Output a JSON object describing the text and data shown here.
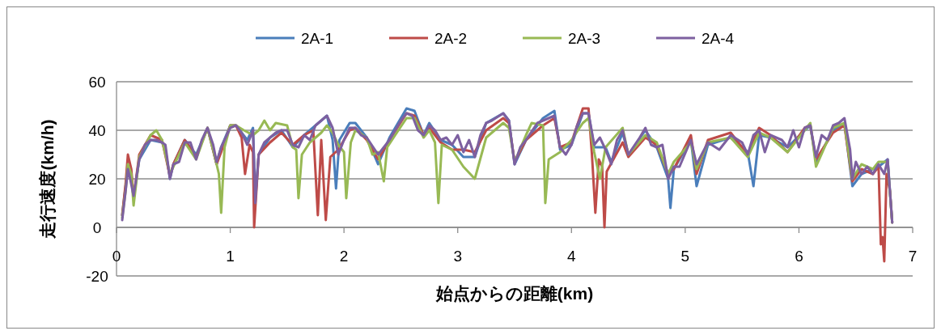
{
  "chart_data": {
    "type": "line",
    "xlabel": "始点からの距離(km)",
    "ylabel": "走行速度(km/h)",
    "xlim": [
      0,
      7
    ],
    "xticks": [
      0,
      1,
      2,
      3,
      4,
      5,
      6,
      7
    ],
    "ylim": [
      -20,
      60
    ],
    "yticks": [
      -20,
      0,
      20,
      40,
      60
    ],
    "grid": "y",
    "legend": "top",
    "marker": "none",
    "line_style": "solid",
    "series": [
      {
        "name": "2A-1",
        "color": "#4a7ebb",
        "x": [
          0.05,
          0.08,
          0.1,
          0.13,
          0.15,
          0.2,
          0.3,
          0.4,
          0.43,
          0.47,
          0.5,
          0.6,
          0.7,
          0.8,
          0.88,
          0.92,
          1.0,
          1.05,
          1.15,
          1.2,
          1.22,
          1.25,
          1.35,
          1.45,
          1.55,
          1.65,
          1.75,
          1.85,
          1.9,
          1.93,
          1.96,
          2.05,
          2.1,
          2.2,
          2.3,
          2.4,
          2.55,
          2.62,
          2.7,
          2.75,
          2.85,
          2.95,
          3.05,
          3.15,
          3.25,
          3.4,
          3.45,
          3.5,
          3.6,
          3.75,
          3.85,
          3.9,
          4.0,
          4.1,
          4.15,
          4.2,
          4.3,
          4.35,
          4.45,
          4.5,
          4.65,
          4.75,
          4.85,
          4.87,
          4.9,
          5.05,
          5.1,
          5.2,
          5.4,
          5.55,
          5.6,
          5.65,
          5.75,
          5.9,
          6.05,
          6.1,
          6.15,
          6.3,
          6.4,
          6.47,
          6.55,
          6.7,
          6.78,
          6.82
        ],
        "values": [
          5,
          17,
          24,
          22,
          12,
          28,
          36,
          35,
          32,
          20,
          26,
          36,
          30,
          41,
          26,
          33,
          42,
          42,
          36,
          41,
          12,
          30,
          37,
          40,
          33,
          38,
          42,
          46,
          36,
          16,
          36,
          43,
          43,
          37,
          26,
          37,
          49,
          48,
          38,
          43,
          36,
          34,
          29,
          29,
          43,
          47,
          44,
          26,
          36,
          45,
          48,
          32,
          34,
          47,
          47,
          33,
          33,
          27,
          39,
          30,
          40,
          33,
          20,
          8,
          24,
          36,
          17,
          34,
          37,
          31,
          17,
          38,
          37,
          33,
          40,
          42,
          27,
          40,
          43,
          17,
          22,
          25,
          28,
          2
        ]
      },
      {
        "name": "2A-2",
        "color": "#be4b48",
        "x": [
          0.05,
          0.08,
          0.1,
          0.13,
          0.15,
          0.2,
          0.3,
          0.4,
          0.47,
          0.5,
          0.6,
          0.7,
          0.8,
          0.88,
          0.92,
          1.0,
          1.05,
          1.1,
          1.13,
          1.17,
          1.2,
          1.21,
          1.25,
          1.35,
          1.45,
          1.55,
          1.65,
          1.73,
          1.77,
          1.8,
          1.84,
          1.88,
          1.95,
          2.05,
          2.1,
          2.2,
          2.3,
          2.4,
          2.55,
          2.62,
          2.7,
          2.75,
          2.85,
          2.95,
          3.05,
          3.15,
          3.25,
          3.4,
          3.45,
          3.5,
          3.6,
          3.75,
          3.85,
          3.9,
          4.0,
          4.1,
          4.15,
          4.18,
          4.21,
          4.24,
          4.27,
          4.29,
          4.31,
          4.45,
          4.5,
          4.65,
          4.75,
          4.85,
          4.9,
          5.05,
          5.1,
          5.2,
          5.4,
          5.55,
          5.6,
          5.65,
          5.75,
          5.9,
          6.05,
          6.1,
          6.15,
          6.3,
          6.4,
          6.47,
          6.55,
          6.65,
          6.7,
          6.72,
          6.735,
          6.75,
          6.77,
          6.8,
          6.82
        ],
        "values": [
          5,
          18,
          30,
          24,
          12,
          30,
          38,
          36,
          21,
          26,
          36,
          29,
          41,
          26,
          31,
          42,
          42,
          37,
          22,
          34,
          31,
          0,
          30,
          35,
          39,
          34,
          38,
          40,
          5,
          36,
          3,
          29,
          32,
          40,
          41,
          36,
          28,
          36,
          47,
          46,
          38,
          41,
          35,
          32,
          32,
          31,
          40,
          45,
          43,
          27,
          36,
          42,
          45,
          33,
          35,
          49,
          49,
          30,
          6,
          28,
          25,
          0,
          23,
          35,
          29,
          37,
          34,
          22,
          24,
          38,
          22,
          36,
          39,
          30,
          36,
          41,
          38,
          31,
          41,
          42,
          28,
          39,
          42,
          19,
          24,
          22,
          25,
          -7,
          -4,
          -14,
          22,
          15,
          2
        ]
      },
      {
        "name": "2A-3",
        "color": "#98b954",
        "x": [
          0.05,
          0.08,
          0.1,
          0.13,
          0.15,
          0.2,
          0.3,
          0.35,
          0.4,
          0.47,
          0.5,
          0.6,
          0.7,
          0.8,
          0.85,
          0.9,
          0.92,
          0.95,
          1.0,
          1.05,
          1.12,
          1.2,
          1.25,
          1.3,
          1.35,
          1.4,
          1.5,
          1.55,
          1.58,
          1.6,
          1.63,
          1.7,
          1.8,
          1.85,
          1.9,
          1.95,
          2.0,
          2.02,
          2.06,
          2.1,
          2.2,
          2.25,
          2.3,
          2.35,
          2.38,
          2.45,
          2.55,
          2.62,
          2.7,
          2.75,
          2.8,
          2.83,
          2.86,
          2.95,
          3.05,
          3.15,
          3.25,
          3.4,
          3.45,
          3.5,
          3.6,
          3.65,
          3.75,
          3.77,
          3.8,
          3.9,
          4.0,
          4.1,
          4.15,
          4.2,
          4.25,
          4.3,
          4.45,
          4.5,
          4.65,
          4.75,
          4.85,
          4.9,
          5.05,
          5.1,
          5.2,
          5.4,
          5.55,
          5.6,
          5.65,
          5.75,
          5.9,
          6.05,
          6.1,
          6.15,
          6.3,
          6.4,
          6.47,
          6.55,
          6.65,
          6.7,
          6.78,
          6.82
        ],
        "values": [
          4,
          15,
          26,
          22,
          9,
          29,
          38,
          40,
          36,
          22,
          25,
          35,
          28,
          41,
          32,
          22,
          6,
          33,
          42,
          42,
          40,
          38,
          40,
          44,
          40,
          43,
          42,
          33,
          32,
          12,
          30,
          35,
          39,
          42,
          39,
          34,
          31,
          12,
          35,
          40,
          37,
          30,
          31,
          19,
          33,
          38,
          45,
          45,
          37,
          40,
          35,
          10,
          34,
          32,
          25,
          20,
          37,
          43,
          41,
          27,
          38,
          43,
          42,
          10,
          28,
          31,
          36,
          43,
          45,
          31,
          20,
          33,
          41,
          30,
          38,
          35,
          22,
          27,
          35,
          24,
          35,
          37,
          29,
          34,
          39,
          37,
          31,
          40,
          43,
          25,
          41,
          43,
          20,
          26,
          24,
          27,
          27,
          2
        ]
      },
      {
        "name": "2A-4",
        "color": "#7d60a0",
        "x": [
          0.05,
          0.08,
          0.1,
          0.12,
          0.15,
          0.2,
          0.25,
          0.3,
          0.35,
          0.4,
          0.43,
          0.47,
          0.5,
          0.55,
          0.6,
          0.65,
          0.7,
          0.75,
          0.8,
          0.85,
          0.88,
          0.92,
          1.0,
          1.05,
          1.1,
          1.15,
          1.2,
          1.22,
          1.25,
          1.3,
          1.4,
          1.45,
          1.5,
          1.55,
          1.6,
          1.65,
          1.7,
          1.75,
          1.8,
          1.85,
          1.9,
          1.95,
          2.0,
          2.05,
          2.1,
          2.15,
          2.2,
          2.3,
          2.35,
          2.4,
          2.5,
          2.55,
          2.6,
          2.65,
          2.7,
          2.75,
          2.8,
          2.85,
          2.9,
          2.95,
          3.0,
          3.05,
          3.1,
          3.15,
          3.2,
          3.25,
          3.3,
          3.4,
          3.45,
          3.5,
          3.55,
          3.6,
          3.7,
          3.8,
          3.85,
          3.9,
          3.95,
          4.0,
          4.05,
          4.1,
          4.15,
          4.2,
          4.25,
          4.3,
          4.35,
          4.4,
          4.45,
          4.5,
          4.6,
          4.65,
          4.7,
          4.75,
          4.8,
          4.85,
          4.9,
          4.95,
          5.05,
          5.1,
          5.2,
          5.3,
          5.4,
          5.5,
          5.55,
          5.6,
          5.65,
          5.7,
          5.75,
          5.85,
          5.9,
          5.95,
          6.0,
          6.05,
          6.1,
          6.15,
          6.2,
          6.25,
          6.3,
          6.35,
          6.4,
          6.45,
          6.47,
          6.5,
          6.55,
          6.6,
          6.65,
          6.7,
          6.75,
          6.78,
          6.8,
          6.82
        ],
        "values": [
          3,
          15,
          24,
          20,
          13,
          28,
          34,
          36,
          36,
          35,
          34,
          20,
          26,
          27,
          35,
          35,
          28,
          36,
          41,
          34,
          27,
          33,
          41,
          42,
          39,
          34,
          40,
          10,
          30,
          35,
          39,
          40,
          40,
          34,
          33,
          38,
          36,
          42,
          44,
          46,
          41,
          30,
          36,
          41,
          41,
          38,
          37,
          30,
          33,
          36,
          44,
          47,
          46,
          40,
          38,
          42,
          40,
          36,
          37,
          34,
          38,
          31,
          36,
          29,
          38,
          43,
          44,
          47,
          44,
          26,
          33,
          36,
          43,
          45,
          46,
          33,
          30,
          34,
          42,
          47,
          47,
          34,
          37,
          32,
          26,
          36,
          40,
          30,
          37,
          41,
          34,
          33,
          34,
          20,
          25,
          25,
          36,
          26,
          35,
          32,
          38,
          35,
          30,
          38,
          40,
          31,
          38,
          36,
          33,
          40,
          33,
          41,
          42,
          29,
          38,
          36,
          42,
          43,
          45,
          32,
          20,
          27,
          22,
          25,
          22,
          26,
          22,
          28,
          15,
          2
        ]
      }
    ]
  }
}
